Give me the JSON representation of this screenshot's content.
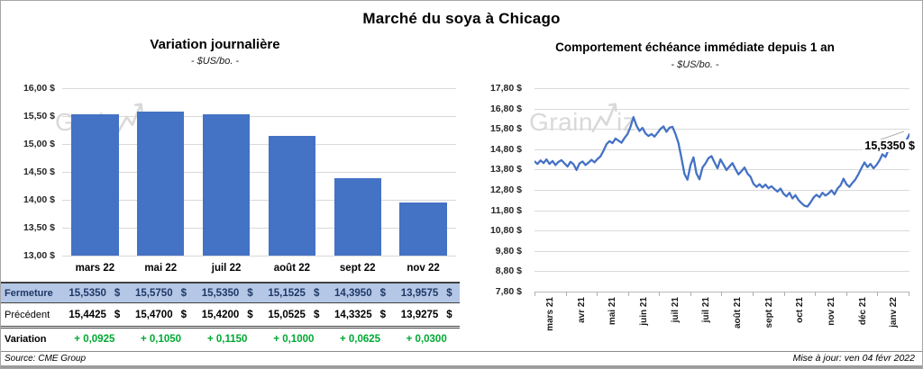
{
  "title": "Marché du soya à Chicago",
  "watermark": {
    "prefix": "Grain",
    "suffix": "iz"
  },
  "colors": {
    "accent_blue": "#4472C4",
    "table_row_bg": "#B4C7E7",
    "table_row_text": "#1F3864",
    "variation_green": "#00A933",
    "gridline": "#D9D9D9",
    "watermark": "#D9D9D9"
  },
  "chart_data": [
    {
      "type": "bar",
      "title": "Variation  journalière",
      "subtitle": "- $US/bo. -",
      "categories": [
        "mars 22",
        "mai 22",
        "juil 22",
        "août 22",
        "sept 22",
        "nov 22"
      ],
      "values": [
        15.535,
        15.575,
        15.535,
        15.1525,
        14.395,
        13.9575
      ],
      "ylim": [
        13.0,
        16.0
      ],
      "ytick_labels": [
        "16,00 $",
        "15,50 $",
        "15,00 $",
        "14,50 $",
        "14,00 $",
        "13,50 $",
        "13,00 $"
      ],
      "grid": true,
      "legend": "none"
    },
    {
      "type": "line",
      "title": "Comportement  échéance  immédiate  depuis 1 an",
      "subtitle": "- $US/bo. -",
      "x_labels": [
        "mars 21",
        "avr 21",
        "mai 21",
        "juin 21",
        "juil 21",
        "juil 21",
        "août 21",
        "sept 21",
        "oct 21",
        "nov 21",
        "déc 21",
        "janv 22"
      ],
      "ylim": [
        7.8,
        17.8
      ],
      "ytick_labels": [
        "17,80 $",
        "16,80 $",
        "15,80 $",
        "14,80 $",
        "13,80 $",
        "12,80 $",
        "11,80 $",
        "10,80 $",
        "9,80 $",
        "8,80 $",
        "7,80 $"
      ],
      "grid": true,
      "legend": "none",
      "annotation": {
        "label": "15,5350 $",
        "value": 15.535
      },
      "values": [
        14.2,
        14.08,
        14.25,
        14.12,
        14.3,
        14.08,
        14.22,
        14.02,
        14.18,
        14.26,
        14.1,
        13.95,
        14.18,
        14.06,
        13.78,
        14.1,
        14.2,
        14.02,
        14.14,
        14.28,
        14.16,
        14.32,
        14.45,
        14.72,
        15.05,
        15.2,
        15.1,
        15.32,
        15.22,
        15.12,
        15.35,
        15.55,
        15.9,
        16.38,
        15.95,
        15.7,
        15.85,
        15.58,
        15.45,
        15.55,
        15.42,
        15.6,
        15.8,
        15.92,
        15.66,
        15.86,
        15.9,
        15.55,
        15.1,
        14.35,
        13.58,
        13.3,
        14.02,
        14.4,
        13.6,
        13.32,
        13.9,
        14.1,
        14.36,
        14.46,
        14.15,
        13.86,
        14.3,
        14.04,
        13.78,
        13.95,
        14.12,
        13.82,
        13.56,
        13.72,
        13.9,
        13.6,
        13.45,
        13.1,
        12.95,
        13.08,
        12.92,
        13.06,
        12.88,
        12.98,
        12.84,
        12.72,
        12.86,
        12.62,
        12.48,
        12.66,
        12.38,
        12.54,
        12.3,
        12.15,
        12.02,
        11.98,
        12.18,
        12.42,
        12.56,
        12.44,
        12.66,
        12.52,
        12.62,
        12.78,
        12.58,
        12.86,
        13.02,
        13.35,
        13.08,
        12.95,
        13.15,
        13.32,
        13.58,
        13.88,
        14.15,
        13.92,
        14.08,
        13.86,
        14.02,
        14.25,
        14.55,
        14.42,
        14.78,
        15.02,
        14.72,
        14.88,
        15.12,
        14.95,
        15.25,
        15.535
      ]
    }
  ],
  "table": {
    "currency_symbol": "$",
    "rows": [
      {
        "label": "Fermeture",
        "currency": true,
        "values": [
          "15,5350",
          "15,5750",
          "15,5350",
          "15,1525",
          "14,3950",
          "13,9575"
        ]
      },
      {
        "label": "Précédent",
        "currency": true,
        "values": [
          "15,4425",
          "15,4700",
          "15,4200",
          "15,0525",
          "14,3325",
          "13,9275"
        ]
      },
      {
        "label": "Variation",
        "currency": false,
        "values": [
          "+ 0,0925",
          "+ 0,1050",
          "+ 0,1150",
          "+ 0,1000",
          "+ 0,0625",
          "+ 0,0300"
        ]
      }
    ]
  },
  "footer": {
    "source": "Source: CME Group",
    "updated": "Mise à jour: ven 04 févr 2022"
  }
}
